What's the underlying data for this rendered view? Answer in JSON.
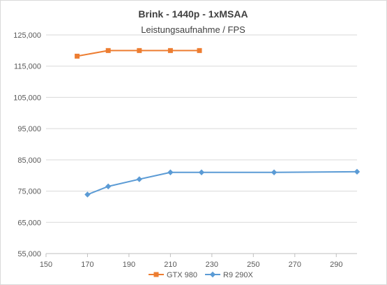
{
  "chart_data": {
    "type": "line",
    "title": "Brink - 1440p - 1xMSAA",
    "subtitle": "Leistungsaufnahme / FPS",
    "xlabel": "",
    "ylabel": "",
    "xlim": [
      150,
      300
    ],
    "ylim": [
      55000,
      125000
    ],
    "x_ticks": [
      150,
      170,
      190,
      210,
      230,
      250,
      270,
      290
    ],
    "y_ticks": [
      55000,
      65000,
      75000,
      85000,
      95000,
      105000,
      115000,
      125000
    ],
    "x_tick_labels": [
      "150",
      "170",
      "190",
      "210",
      "230",
      "250",
      "270",
      "290"
    ],
    "y_tick_labels": [
      "55,000",
      "65,000",
      "75,000",
      "85,000",
      "95,000",
      "105,000",
      "115,000",
      "125,000"
    ],
    "grid": "horizontal",
    "legend_position": "bottom",
    "series": [
      {
        "name": "GTX 980",
        "color": "#ed7d31",
        "marker": "square",
        "points": [
          [
            165,
            118200
          ],
          [
            180,
            120000
          ],
          [
            195,
            120000
          ],
          [
            210,
            120000
          ],
          [
            224,
            120000
          ]
        ]
      },
      {
        "name": "R9 290X",
        "color": "#5b9bd5",
        "marker": "diamond",
        "points": [
          [
            170,
            73900
          ],
          [
            180,
            76500
          ],
          [
            195,
            78800
          ],
          [
            210,
            81000
          ],
          [
            225,
            81000
          ],
          [
            260,
            81000
          ],
          [
            300,
            81200
          ]
        ]
      }
    ]
  }
}
